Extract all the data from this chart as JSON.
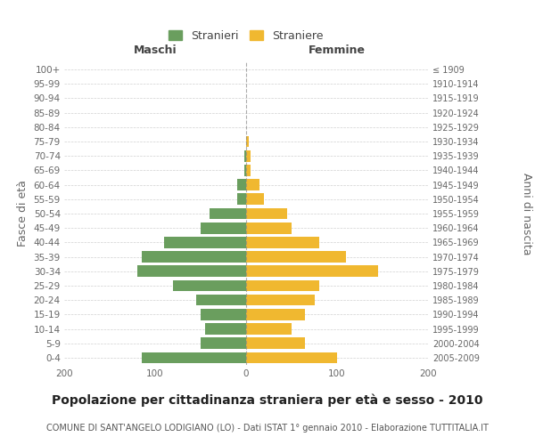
{
  "age_groups": [
    "0-4",
    "5-9",
    "10-14",
    "15-19",
    "20-24",
    "25-29",
    "30-34",
    "35-39",
    "40-44",
    "45-49",
    "50-54",
    "55-59",
    "60-64",
    "65-69",
    "70-74",
    "75-79",
    "80-84",
    "85-89",
    "90-94",
    "95-99",
    "100+"
  ],
  "birth_years": [
    "2005-2009",
    "2000-2004",
    "1995-1999",
    "1990-1994",
    "1985-1989",
    "1980-1984",
    "1975-1979",
    "1970-1974",
    "1965-1969",
    "1960-1964",
    "1955-1959",
    "1950-1954",
    "1945-1949",
    "1940-1944",
    "1935-1939",
    "1930-1934",
    "1925-1929",
    "1920-1924",
    "1915-1919",
    "1910-1914",
    "≤ 1909"
  ],
  "males": [
    115,
    50,
    45,
    50,
    55,
    80,
    120,
    115,
    90,
    50,
    40,
    10,
    10,
    2,
    2,
    0,
    0,
    0,
    0,
    0,
    0
  ],
  "females": [
    100,
    65,
    50,
    65,
    75,
    80,
    145,
    110,
    80,
    50,
    45,
    20,
    15,
    5,
    5,
    3,
    0,
    0,
    0,
    0,
    0
  ],
  "male_color": "#6a9e5e",
  "female_color": "#f0b830",
  "background_color": "#ffffff",
  "grid_color": "#cccccc",
  "center_line_color": "#888888",
  "xlim": 200,
  "title": "Popolazione per cittadinanza straniera per età e sesso - 2010",
  "subtitle": "COMUNE DI SANT'ANGELO LODIGIANO (LO) - Dati ISTAT 1° gennaio 2010 - Elaborazione TUTTITALIA.IT",
  "ylabel_left": "Fasce di età",
  "ylabel_right": "Anni di nascita",
  "xlabel_left": "Maschi",
  "xlabel_right": "Femmine",
  "legend_stranieri": "Stranieri",
  "legend_straniere": "Straniere",
  "title_fontsize": 10,
  "subtitle_fontsize": 7,
  "label_fontsize": 9,
  "tick_fontsize": 7.5,
  "bar_height": 0.78
}
